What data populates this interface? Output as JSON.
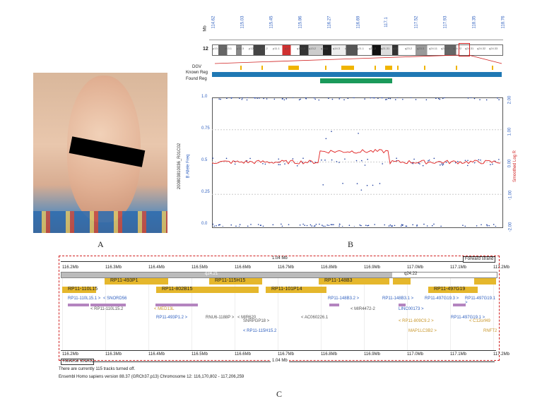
{
  "panels": {
    "a_label": "A",
    "b_label": "B",
    "c_label": "C"
  },
  "mb_axis": {
    "unit": "Mb",
    "ticks": [
      "114.62",
      "115.03",
      "115.45",
      "115.86",
      "116.27",
      "116.69",
      "117.1",
      "117.52",
      "117.93",
      "118.35",
      "118.76"
    ]
  },
  "chromosome": {
    "number": "12",
    "bands": [
      "p13.3",
      "p13.1",
      "p12.3",
      "p12.1",
      "p11.2",
      "p11.1",
      "q12",
      "q13.12",
      "q13.2",
      "q14.1",
      "q14.3",
      "q15",
      "q21.1",
      "q21.2",
      "q21.31",
      "q22",
      "q23.2",
      "q23.3",
      "q24.11",
      "q24.13",
      "q24.22",
      "q24.31",
      "q24.32",
      "q24.33"
    ]
  },
  "tracks": {
    "dgv": "DGV",
    "known": "Known Reg",
    "found": "Found Reg"
  },
  "plot": {
    "left_axis_label": "200803810036_R01C02",
    "left_axis_label2": "B Allele Freq",
    "right_axis_label": "Smoothed Log R",
    "left_ticks": [
      "1.0",
      "0.75",
      "0.5",
      "0.25",
      "0.0"
    ],
    "right_ticks": [
      "2.00",
      "1.00",
      "0.00",
      "-1.00",
      "-2.00"
    ]
  },
  "chart_data": {
    "type": "scatter",
    "series": [
      {
        "name": "B Allele Freq",
        "values": [
          0.0,
          0.5,
          1.0,
          0.35,
          0.65,
          0.3,
          0.7
        ]
      },
      {
        "name": "Smoothed Log R",
        "values": [
          0.0,
          0.0,
          0.33,
          0.2,
          0.0
        ]
      }
    ],
    "ylim_left": [
      0,
      1
    ],
    "ylim_right": [
      -2,
      2
    ]
  },
  "ensembl": {
    "scale_top": "1.04 Mb",
    "forward": "Forward strand",
    "reverse": "Reverse strand",
    "scale_bottom": "1.04 Mb",
    "ticks": [
      "116.2Mb",
      "116.3Mb",
      "116.4Mb",
      "116.5Mb",
      "116.6Mb",
      "116.7Mb",
      "116.8Mb",
      "116.9Mb",
      "117.0Mb",
      "117.1Mb",
      "117.2Mb"
    ],
    "band_left": "q24.21",
    "band_right": "q24.22",
    "clones": [
      "RP11-110L15",
      "RP11-493P1",
      "RP11-802B15",
      "RP11-115H15",
      "RP11-101P14",
      "RP11-148B3",
      "RP11-497G19"
    ],
    "labels_row1": [
      "RP11-110L15.1 >",
      "< SNORD56",
      "RP11-148B3.2 >",
      "RP11-148B3.1 >",
      "RP11-497G19.3 >",
      "RP11-497G19.1 >"
    ],
    "labels_row2": [
      "< RP11-110L15.2",
      "< MED13L",
      "< MIR4472-2",
      "LINC00173 >"
    ],
    "labels_row3": [
      "RP11-493P1.2 >",
      "RNU6-1188P >",
      "< MIR620",
      "< AC060226.1",
      "RP11-497G19.1 >"
    ],
    "labels_row4": [
      "SNRPGP18 >",
      "< RP11-809C9.2 >",
      "< C12orf49"
    ],
    "labels_row5": [
      "< RP11-115H15.2",
      "MAP1LC3B2 >",
      "RNFT2"
    ],
    "footer1": "There are currently 115 tracks turned off.",
    "footer2": "Ensembl Homo sapiens version 88.37 (GRCh37.p13) Chromosome 12: 116,170,802 - 117,206,259",
    "colors": {
      "gene": "#e5b72c",
      "nc": "#b484bf",
      "link": "#2e5fbf",
      "frame": "#d02020"
    }
  }
}
